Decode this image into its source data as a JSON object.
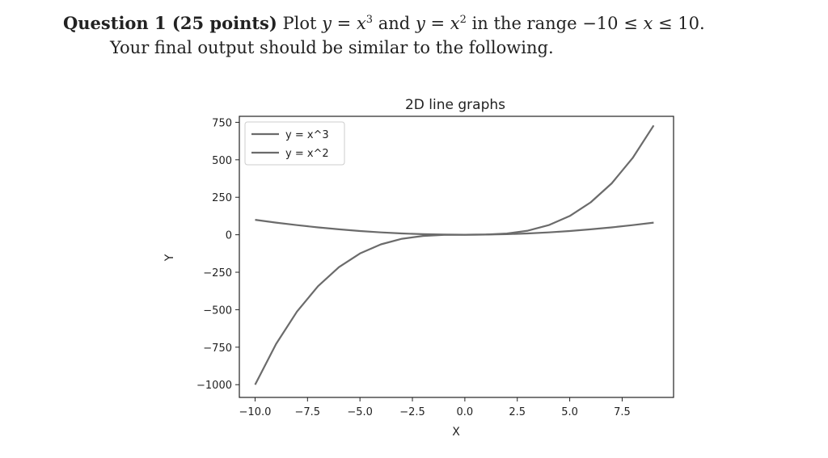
{
  "question": {
    "heading": "Question 1 (25 points)",
    "text_plot": "Plot",
    "eq1_lhs": "y",
    "eq1_rhs_base": "x",
    "eq1_rhs_exp": "3",
    "text_and": "and",
    "eq2_lhs": "y",
    "eq2_rhs_base": "x",
    "eq2_rhs_exp": "2",
    "text_range": "in the range",
    "range_low": "−10",
    "range_var": "x",
    "range_high": "10",
    "line2": "Your final output should be similar to the following."
  },
  "chart_data": {
    "type": "line",
    "title": "2D line graphs",
    "xlabel": "X",
    "ylabel": "Y",
    "xlim": [
      -10.75,
      9.95
    ],
    "ylim": [
      -1085,
      790
    ],
    "x": [
      -10,
      -9,
      -8,
      -7,
      -6,
      -5,
      -4,
      -3,
      -2,
      -1,
      0,
      1,
      2,
      3,
      4,
      5,
      6,
      7,
      8,
      9
    ],
    "series": [
      {
        "name": "y = x^3",
        "values": [
          -1000,
          -729,
          -512,
          -343,
          -216,
          -125,
          -64,
          -27,
          -8,
          -1,
          0,
          1,
          8,
          27,
          64,
          125,
          216,
          343,
          512,
          729
        ]
      },
      {
        "name": "y = x^2",
        "values": [
          100,
          81,
          64,
          49,
          36,
          25,
          16,
          9,
          4,
          1,
          0,
          1,
          4,
          9,
          16,
          25,
          36,
          49,
          64,
          81
        ]
      }
    ],
    "xticks": [
      -10.0,
      -7.5,
      -5.0,
      -2.5,
      0.0,
      2.5,
      5.0,
      7.5
    ],
    "xtick_labels": [
      "−10.0",
      "−7.5",
      "−5.0",
      "−2.5",
      "0.0",
      "2.5",
      "5.0",
      "7.5"
    ],
    "yticks": [
      750,
      500,
      250,
      0,
      -250,
      -500,
      -750,
      -1000
    ],
    "ytick_labels": [
      "750",
      "500",
      "250",
      "0",
      "−250",
      "−500",
      "−750",
      "−1000"
    ],
    "legend_position": "upper-left",
    "grid": false,
    "line_color": "#6b6b6b"
  }
}
